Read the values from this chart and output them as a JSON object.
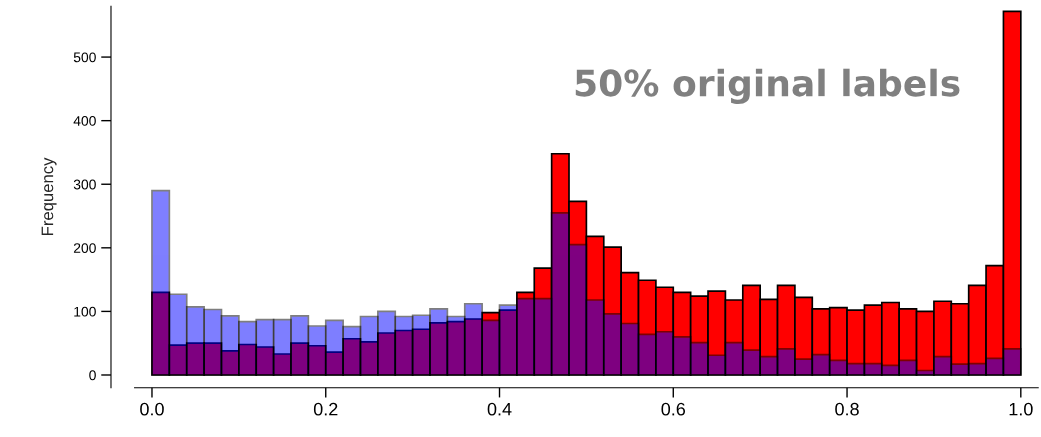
{
  "chart_data": {
    "type": "histogram",
    "ylabel": "Frequency",
    "annotations": [
      "50% original labels"
    ],
    "bins": [
      0.0,
      0.02,
      0.04,
      0.06,
      0.08,
      0.1,
      0.12,
      0.14,
      0.16,
      0.18,
      0.2,
      0.22,
      0.24,
      0.26,
      0.28,
      0.3,
      0.32,
      0.34,
      0.36,
      0.38,
      0.4,
      0.42,
      0.44,
      0.46,
      0.48,
      0.5,
      0.52,
      0.54,
      0.56,
      0.58,
      0.6,
      0.62,
      0.64,
      0.66,
      0.68,
      0.7,
      0.72,
      0.74,
      0.76,
      0.78,
      0.8,
      0.82,
      0.84,
      0.86,
      0.88,
      0.9,
      0.92,
      0.94,
      0.96,
      0.98,
      1.0
    ],
    "series": [
      {
        "color": "#ff0000",
        "values": [
          130,
          47,
          50,
          50,
          38,
          48,
          44,
          33,
          50,
          46,
          36,
          57,
          52,
          66,
          70,
          72,
          82,
          84,
          88,
          98,
          102,
          130,
          168,
          348,
          273,
          218,
          201,
          161,
          149,
          138,
          130,
          124,
          132,
          118,
          141,
          119,
          141,
          122,
          104,
          106,
          102,
          110,
          114,
          104,
          100,
          116,
          112,
          141,
          172,
          572
        ]
      },
      {
        "color": "#0000ff",
        "values": [
          290,
          127,
          107,
          103,
          93,
          84,
          87,
          87,
          93,
          77,
          86,
          76,
          92,
          100,
          92,
          94,
          104,
          92,
          112,
          86,
          110,
          120,
          120,
          255,
          205,
          118,
          96,
          81,
          64,
          68,
          60,
          51,
          31,
          51,
          39,
          29,
          41,
          25,
          32,
          23,
          18,
          18,
          15,
          23,
          7,
          29,
          17,
          18,
          26,
          41
        ]
      }
    ],
    "xlim": [
      -0.02,
      1.02
    ],
    "ylim": [
      -20,
      580
    ],
    "xticks": [
      {
        "value": 0.0,
        "label": "0.0"
      },
      {
        "value": 0.2,
        "label": "0.2"
      },
      {
        "value": 0.4,
        "label": "0.4"
      },
      {
        "value": 0.6,
        "label": "0.6"
      },
      {
        "value": 0.8,
        "label": "0.8"
      },
      {
        "value": 1.0,
        "label": "1.0"
      }
    ],
    "yticks": [
      0,
      100,
      200,
      300,
      400,
      500
    ],
    "grid": false
  }
}
